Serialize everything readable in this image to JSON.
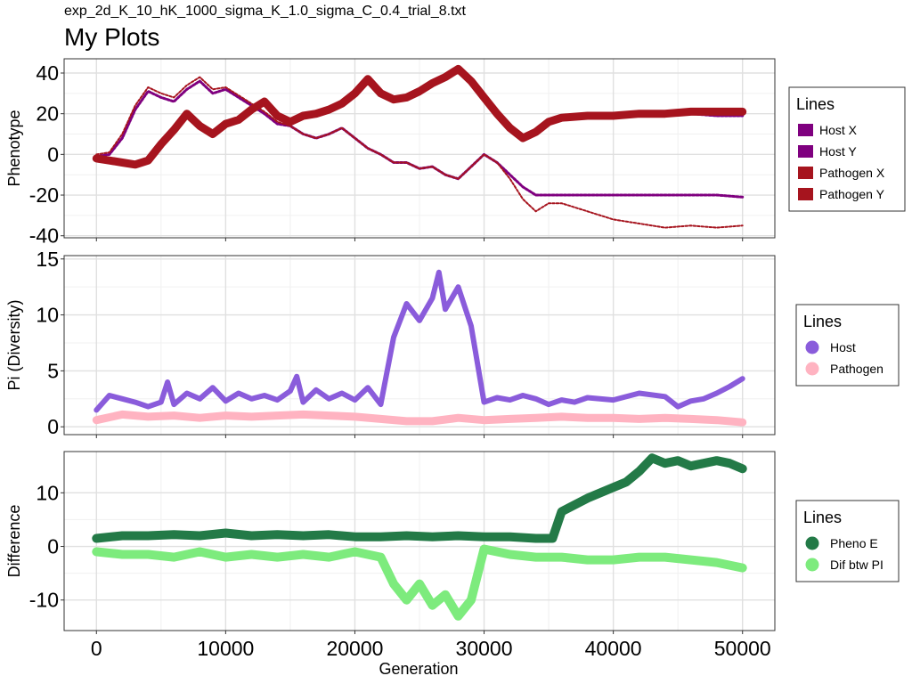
{
  "figure": {
    "subtitle": "exp_2d_K_10_hK_1000_sigma_K_1.0_sigma_C_0.4_trial_8.txt",
    "title": "My Plots",
    "shared_xlabel": "Generation"
  },
  "chart_data": [
    {
      "type": "line",
      "ylabel": "Phenotype",
      "xlim": [
        -2500,
        52500
      ],
      "ylim": [
        -41,
        47
      ],
      "x_ticks": [
        0,
        10000,
        20000,
        30000,
        40000,
        50000
      ],
      "y_ticks": [
        -40,
        -20,
        0,
        20,
        40
      ],
      "grid": true,
      "legend": {
        "title": "Lines",
        "position": "right",
        "marker": "square"
      },
      "series": [
        {
          "name": "Host X",
          "color": "#7f007f",
          "width": 3,
          "x": [
            0,
            1000,
            2000,
            3000,
            4000,
            5000,
            6000,
            7000,
            8000,
            9000,
            10000,
            11000,
            12000,
            13000,
            14000,
            15000,
            16000,
            17000,
            18000,
            19000,
            20000,
            21000,
            22000,
            23000,
            24000,
            25000,
            26000,
            27000,
            28000,
            29000,
            30000,
            31000,
            32000,
            33000,
            34000,
            35000,
            36000,
            38000,
            40000,
            42000,
            44000,
            46000,
            48000,
            50000
          ],
          "y": [
            -2,
            -3,
            -4,
            -5,
            -3,
            5,
            12,
            20,
            14,
            10,
            15,
            17,
            22,
            26,
            19,
            16,
            19,
            20,
            22,
            25,
            30,
            37,
            30,
            27,
            28,
            31,
            35,
            38,
            42,
            36,
            28,
            20,
            13,
            8,
            11,
            16,
            18,
            19,
            19,
            20,
            20,
            20,
            19,
            19
          ]
        },
        {
          "name": "Host Y",
          "color": "#7f007f",
          "width": 3,
          "x": [
            0,
            1000,
            2000,
            3000,
            4000,
            5000,
            6000,
            7000,
            8000,
            9000,
            10000,
            11000,
            12000,
            13000,
            14000,
            15000,
            16000,
            17000,
            18000,
            19000,
            20000,
            21000,
            22000,
            23000,
            24000,
            25000,
            26000,
            27000,
            28000,
            29000,
            30000,
            31000,
            32000,
            33000,
            34000,
            35000,
            36000,
            38000,
            40000,
            42000,
            44000,
            46000,
            48000,
            50000
          ],
          "y": [
            -1,
            0,
            8,
            22,
            31,
            28,
            26,
            32,
            36,
            30,
            32,
            28,
            24,
            20,
            15,
            14,
            10,
            8,
            10,
            13,
            8,
            3,
            0,
            -4,
            -4,
            -7,
            -6,
            -10,
            -12,
            -6,
            0,
            -4,
            -10,
            -16,
            -20,
            -20,
            -20,
            -20,
            -20,
            -20,
            -20,
            -20,
            -20,
            -21
          ]
        },
        {
          "name": "Pathogen X",
          "color": "#a6141e",
          "width": 9,
          "x": [
            0,
            1000,
            2000,
            3000,
            4000,
            5000,
            6000,
            7000,
            8000,
            9000,
            10000,
            11000,
            12000,
            13000,
            14000,
            15000,
            16000,
            17000,
            18000,
            19000,
            20000,
            21000,
            22000,
            23000,
            24000,
            25000,
            26000,
            27000,
            28000,
            29000,
            30000,
            31000,
            32000,
            33000,
            34000,
            35000,
            36000,
            38000,
            40000,
            42000,
            44000,
            46000,
            48000,
            50000
          ],
          "y": [
            -2,
            -3,
            -4,
            -5,
            -3,
            5,
            12,
            20,
            14,
            10,
            15,
            17,
            22,
            26,
            19,
            16,
            19,
            20,
            22,
            25,
            30,
            37,
            30,
            27,
            28,
            31,
            35,
            38,
            42,
            36,
            28,
            20,
            13,
            8,
            11,
            16,
            18,
            19,
            19,
            20,
            20,
            21,
            21,
            21
          ]
        },
        {
          "name": "Pathogen Y",
          "color": "#a6141e",
          "width": 2,
          "x": [
            0,
            1000,
            2000,
            3000,
            4000,
            5000,
            6000,
            7000,
            8000,
            9000,
            10000,
            11000,
            12000,
            13000,
            14000,
            15000,
            16000,
            17000,
            18000,
            19000,
            20000,
            21000,
            22000,
            23000,
            24000,
            25000,
            26000,
            27000,
            28000,
            29000,
            30000,
            31000,
            32000,
            33000,
            34000,
            35000,
            36000,
            38000,
            40000,
            42000,
            44000,
            46000,
            48000,
            50000
          ],
          "y": [
            0,
            1,
            10,
            24,
            33,
            30,
            28,
            34,
            38,
            32,
            33,
            29,
            25,
            21,
            16,
            14,
            10,
            8,
            10,
            13,
            8,
            3,
            0,
            -4,
            -4,
            -7,
            -6,
            -10,
            -12,
            -6,
            0,
            -4,
            -12,
            -22,
            -28,
            -24,
            -24,
            -28,
            -32,
            -34,
            -36,
            -35,
            -36,
            -35
          ]
        }
      ]
    },
    {
      "type": "scatter",
      "ylabel": "Pi (Diversity)",
      "xlim": [
        -2500,
        52500
      ],
      "ylim": [
        -0.7,
        15.3
      ],
      "x_ticks": [
        0,
        10000,
        20000,
        30000,
        40000,
        50000
      ],
      "y_ticks": [
        0,
        5,
        10,
        15
      ],
      "grid": true,
      "legend": {
        "title": "Lines",
        "position": "right",
        "marker": "circle"
      },
      "series": [
        {
          "name": "Host",
          "color": "#8a5cdb",
          "width": 6,
          "x": [
            0,
            1000,
            2000,
            3000,
            4000,
            5000,
            5500,
            6000,
            7000,
            8000,
            9000,
            10000,
            11000,
            12000,
            13000,
            14000,
            15000,
            15500,
            16000,
            17000,
            18000,
            19000,
            20000,
            21000,
            22000,
            23000,
            24000,
            25000,
            26000,
            26500,
            27000,
            28000,
            29000,
            30000,
            31000,
            32000,
            33000,
            34000,
            35000,
            36000,
            37000,
            38000,
            40000,
            42000,
            44000,
            45000,
            46000,
            47000,
            48000,
            49000,
            50000
          ],
          "y": [
            1.5,
            2.8,
            2.5,
            2.2,
            1.8,
            2.2,
            4.0,
            2.0,
            3.0,
            2.5,
            3.5,
            2.3,
            3.0,
            2.5,
            2.8,
            2.4,
            3.2,
            4.5,
            2.2,
            3.3,
            2.5,
            3.0,
            2.4,
            3.5,
            2.0,
            8.0,
            11.0,
            9.5,
            11.5,
            13.8,
            10.5,
            12.5,
            9.0,
            2.2,
            2.6,
            2.4,
            2.8,
            2.5,
            2.0,
            2.4,
            2.2,
            2.6,
            2.4,
            3.0,
            2.7,
            1.8,
            2.3,
            2.5,
            3.0,
            3.6,
            4.3
          ]
        },
        {
          "name": "Pathogen",
          "color": "#ffb3c1",
          "width": 9,
          "x": [
            0,
            2000,
            4000,
            6000,
            8000,
            10000,
            12000,
            14000,
            16000,
            18000,
            20000,
            22000,
            24000,
            26000,
            28000,
            30000,
            32000,
            34000,
            36000,
            38000,
            40000,
            42000,
            44000,
            46000,
            48000,
            50000
          ],
          "y": [
            0.6,
            1.1,
            0.9,
            1.0,
            0.8,
            1.0,
            0.9,
            1.0,
            1.1,
            1.0,
            0.9,
            0.7,
            0.5,
            0.5,
            0.8,
            0.6,
            0.7,
            0.8,
            0.9,
            0.8,
            0.8,
            0.7,
            0.8,
            0.7,
            0.6,
            0.4
          ]
        }
      ]
    },
    {
      "type": "scatter",
      "ylabel": "Difference",
      "xlabel": "Generation",
      "xlim": [
        -2500,
        52500
      ],
      "ylim": [
        -15.7,
        17.7
      ],
      "x_ticks": [
        0,
        10000,
        20000,
        30000,
        40000,
        50000
      ],
      "y_ticks": [
        -10,
        0,
        10
      ],
      "grid": true,
      "legend": {
        "title": "Lines",
        "position": "right",
        "marker": "circle"
      },
      "series": [
        {
          "name": "Pheno E",
          "color": "#237a47",
          "width": 10,
          "x": [
            0,
            2000,
            4000,
            6000,
            8000,
            10000,
            12000,
            14000,
            16000,
            18000,
            20000,
            22000,
            24000,
            26000,
            28000,
            30000,
            32000,
            34000,
            35300,
            36000,
            38000,
            40000,
            41000,
            42000,
            43000,
            44000,
            45000,
            46000,
            47000,
            48000,
            49000,
            50000
          ],
          "y": [
            1.5,
            2.0,
            2.0,
            2.2,
            2.0,
            2.5,
            2.0,
            2.2,
            2.0,
            2.2,
            1.8,
            1.8,
            2.0,
            1.8,
            2.0,
            1.8,
            1.8,
            1.5,
            1.5,
            6.5,
            9.0,
            11.0,
            12.0,
            14.0,
            16.5,
            15.5,
            16.0,
            15.0,
            15.5,
            16.0,
            15.5,
            14.5
          ]
        },
        {
          "name": "Dif btw PI",
          "color": "#7deb7d",
          "width": 10,
          "x": [
            0,
            2000,
            4000,
            6000,
            8000,
            10000,
            12000,
            14000,
            16000,
            18000,
            20000,
            22000,
            23000,
            24000,
            25000,
            26000,
            27000,
            28000,
            29000,
            30000,
            32000,
            34000,
            36000,
            38000,
            40000,
            42000,
            44000,
            46000,
            48000,
            50000
          ],
          "y": [
            -1,
            -1.5,
            -1.5,
            -2,
            -1,
            -2,
            -1.5,
            -2,
            -1.5,
            -2,
            -1,
            -2,
            -7,
            -10,
            -7,
            -11,
            -9,
            -13,
            -10,
            -0.5,
            -1.5,
            -2,
            -2,
            -2.5,
            -2.5,
            -2,
            -2,
            -2.5,
            -3,
            -4
          ]
        }
      ]
    }
  ]
}
